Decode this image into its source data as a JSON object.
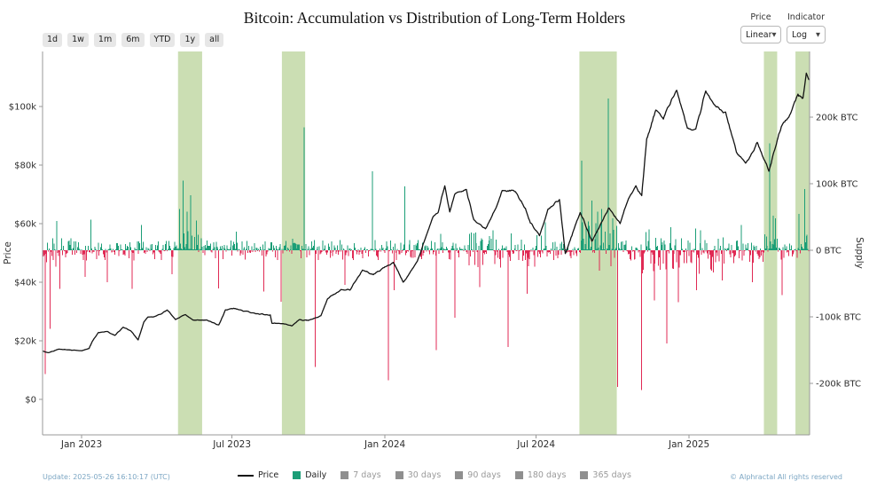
{
  "header": {
    "title": "Bitcoin: Accumulation vs Distribution of Long-Term Holders",
    "range_buttons": [
      "1d",
      "1w",
      "1m",
      "6m",
      "YTD",
      "1y",
      "all"
    ],
    "price_control": {
      "label": "Price",
      "value": "Linear"
    },
    "indicator_control": {
      "label": "Indicator",
      "value": "Log"
    }
  },
  "footer": {
    "update_text": "Update: 2025-05-26 16:10:17 (UTC)",
    "copyright": "© Alphractal All rights reserved",
    "legend": [
      {
        "label": "Price",
        "swatch": "line",
        "color": "#131313",
        "active": true
      },
      {
        "label": "Daily",
        "swatch": "square",
        "color": "#1b9e77",
        "active": true
      },
      {
        "label": "7 days",
        "swatch": "square",
        "color": "#8f8f8f",
        "active": false
      },
      {
        "label": "30 days",
        "swatch": "square",
        "color": "#8f8f8f",
        "active": false
      },
      {
        "label": "90 days",
        "swatch": "square",
        "color": "#8f8f8f",
        "active": false
      },
      {
        "label": "180 days",
        "swatch": "square",
        "color": "#8f8f8f",
        "active": false
      },
      {
        "label": "365 days",
        "swatch": "square",
        "color": "#8f8f8f",
        "active": false
      }
    ]
  },
  "chart_data": {
    "type": "mixed",
    "title": "Bitcoin: Accumulation vs Distribution of Long-Term Holders",
    "grid": false,
    "x_axis": {
      "start": "2022-11-15",
      "end": "2025-05-26",
      "tick_dates": [
        "2023-01-01",
        "2023-07-01",
        "2024-01-01",
        "2024-07-01",
        "2025-01-01"
      ],
      "tick_labels": [
        "Jan 2023",
        "Jul 2023",
        "Jan 2024",
        "Jul 2024",
        "Jan 2025"
      ]
    },
    "left_axis": {
      "label": "Price",
      "unit": "USD",
      "tick_values_usd_k": [
        100,
        80,
        60,
        40,
        20,
        0
      ],
      "tick_labels": [
        "$100k",
        "$80k",
        "$60k",
        "$40k",
        "$20k",
        "$0"
      ]
    },
    "right_axis": {
      "label": "Supply",
      "unit": "BTC",
      "tick_values_k_btc": [
        200,
        100,
        0,
        -100,
        -200
      ],
      "tick_labels": [
        "200k BTC",
        "100k BTC",
        "0 BTC",
        "-100k BTC",
        "-200k BTC"
      ]
    },
    "price_line": {
      "name": "Price",
      "color": "#131313",
      "points_usd": [
        [
          "2022-11-15",
          16500
        ],
        [
          "2022-11-22",
          15900
        ],
        [
          "2022-12-05",
          17200
        ],
        [
          "2022-12-20",
          16800
        ],
        [
          "2023-01-01",
          16600
        ],
        [
          "2023-01-10",
          17400
        ],
        [
          "2023-01-14",
          19900
        ],
        [
          "2023-01-21",
          22800
        ],
        [
          "2023-02-01",
          23100
        ],
        [
          "2023-02-10",
          21900
        ],
        [
          "2023-02-20",
          24600
        ],
        [
          "2023-03-01",
          23500
        ],
        [
          "2023-03-10",
          20300
        ],
        [
          "2023-03-17",
          26500
        ],
        [
          "2023-03-22",
          28100
        ],
        [
          "2023-04-01",
          28400
        ],
        [
          "2023-04-14",
          30500
        ],
        [
          "2023-04-24",
          27300
        ],
        [
          "2023-05-06",
          29000
        ],
        [
          "2023-05-15",
          27100
        ],
        [
          "2023-06-01",
          27100
        ],
        [
          "2023-06-15",
          25300
        ],
        [
          "2023-06-23",
          30500
        ],
        [
          "2023-07-03",
          31100
        ],
        [
          "2023-07-14",
          30300
        ],
        [
          "2023-07-30",
          29300
        ],
        [
          "2023-08-16",
          28700
        ],
        [
          "2023-08-18",
          26000
        ],
        [
          "2023-09-01",
          25900
        ],
        [
          "2023-09-11",
          25100
        ],
        [
          "2023-09-20",
          27200
        ],
        [
          "2023-10-01",
          27000
        ],
        [
          "2023-10-16",
          28500
        ],
        [
          "2023-10-24",
          34500
        ],
        [
          "2023-11-09",
          37300
        ],
        [
          "2023-11-20",
          37400
        ],
        [
          "2023-12-05",
          44100
        ],
        [
          "2023-12-18",
          42600
        ],
        [
          "2024-01-02",
          45400
        ],
        [
          "2024-01-11",
          46900
        ],
        [
          "2024-01-23",
          39900
        ],
        [
          "2024-02-09",
          47100
        ],
        [
          "2024-02-28",
          62500
        ],
        [
          "2024-03-05",
          63800
        ],
        [
          "2024-03-13",
          73100
        ],
        [
          "2024-03-19",
          63800
        ],
        [
          "2024-03-25",
          69900
        ],
        [
          "2024-04-08",
          71600
        ],
        [
          "2024-04-17",
          61300
        ],
        [
          "2024-05-01",
          58300
        ],
        [
          "2024-05-15",
          66200
        ],
        [
          "2024-05-21",
          71400
        ],
        [
          "2024-06-06",
          71100
        ],
        [
          "2024-06-18",
          65100
        ],
        [
          "2024-06-24",
          60300
        ],
        [
          "2024-07-05",
          55900
        ],
        [
          "2024-07-15",
          64700
        ],
        [
          "2024-07-29",
          68200
        ],
        [
          "2024-08-05",
          49800
        ],
        [
          "2024-08-23",
          64100
        ],
        [
          "2024-09-06",
          53900
        ],
        [
          "2024-09-26",
          65200
        ],
        [
          "2024-10-10",
          60300
        ],
        [
          "2024-10-20",
          68400
        ],
        [
          "2024-10-29",
          72700
        ],
        [
          "2024-11-05",
          69400
        ],
        [
          "2024-11-11",
          88700
        ],
        [
          "2024-11-22",
          98900
        ],
        [
          "2024-12-01",
          95900
        ],
        [
          "2024-12-17",
          106100
        ],
        [
          "2024-12-30",
          92600
        ],
        [
          "2025-01-09",
          92500
        ],
        [
          "2025-01-21",
          104800
        ],
        [
          "2025-02-01",
          100600
        ],
        [
          "2025-02-14",
          97500
        ],
        [
          "2025-02-27",
          84700
        ],
        [
          "2025-03-10",
          80700
        ],
        [
          "2025-03-24",
          87500
        ],
        [
          "2025-04-07",
          78200
        ],
        [
          "2025-04-22",
          93400
        ],
        [
          "2025-05-01",
          96500
        ],
        [
          "2025-05-12",
          104100
        ],
        [
          "2025-05-18",
          103100
        ],
        [
          "2025-05-22",
          110700
        ],
        [
          "2025-05-26",
          109400
        ]
      ]
    },
    "daily_flow_bars": {
      "name": "Daily",
      "unit": "k BTC",
      "accumulation_color": "#1b9e77",
      "distribution_color": "#e02a54",
      "notable_accumulation_k_btc": [
        [
          "2022-12-02",
          44
        ],
        [
          "2023-01-12",
          46
        ],
        [
          "2023-03-14",
          38
        ],
        [
          "2023-04-29",
          62
        ],
        [
          "2023-05-03",
          105
        ],
        [
          "2023-05-08",
          58
        ],
        [
          "2023-05-12",
          83
        ],
        [
          "2023-05-19",
          45
        ],
        [
          "2023-07-06",
          28
        ],
        [
          "2023-09-26",
          185
        ],
        [
          "2023-12-17",
          119
        ],
        [
          "2024-01-25",
          96
        ],
        [
          "2024-03-08",
          25
        ],
        [
          "2024-05-10",
          30
        ],
        [
          "2024-07-12",
          42
        ],
        [
          "2024-08-25",
          135
        ],
        [
          "2024-09-06",
          75
        ],
        [
          "2024-09-13",
          58
        ],
        [
          "2024-09-18",
          62
        ],
        [
          "2024-09-26",
          228
        ],
        [
          "2024-10-01",
          48
        ],
        [
          "2024-12-10",
          35
        ],
        [
          "2025-01-15",
          30
        ],
        [
          "2025-03-05",
          38
        ],
        [
          "2025-04-08",
          161
        ],
        [
          "2025-04-12",
          52
        ],
        [
          "2025-04-15",
          48
        ],
        [
          "2025-05-13",
          55
        ],
        [
          "2025-05-20",
          92
        ]
      ],
      "notable_distribution_k_btc": [
        [
          "2022-11-18",
          -186
        ],
        [
          "2022-11-24",
          -118
        ],
        [
          "2022-12-06",
          -58
        ],
        [
          "2023-01-05",
          -40
        ],
        [
          "2023-02-01",
          -48
        ],
        [
          "2023-03-03",
          -58
        ],
        [
          "2023-04-20",
          -36
        ],
        [
          "2023-06-15",
          -57
        ],
        [
          "2023-08-08",
          -62
        ],
        [
          "2023-08-29",
          -77
        ],
        [
          "2023-10-09",
          -175
        ],
        [
          "2023-11-14",
          -52
        ],
        [
          "2024-01-05",
          -195
        ],
        [
          "2024-01-12",
          -60
        ],
        [
          "2024-03-03",
          -150
        ],
        [
          "2024-03-25",
          -101
        ],
        [
          "2024-04-24",
          -55
        ],
        [
          "2024-05-28",
          -145
        ],
        [
          "2024-06-20",
          -65
        ],
        [
          "2024-10-07",
          -205
        ],
        [
          "2024-11-05",
          -210
        ],
        [
          "2024-11-20",
          -75
        ],
        [
          "2024-12-05",
          -140
        ],
        [
          "2024-12-19",
          -78
        ],
        [
          "2025-01-10",
          -60
        ],
        [
          "2025-02-10",
          -45
        ],
        [
          "2025-03-18",
          -48
        ],
        [
          "2025-04-23",
          -67
        ]
      ],
      "baseline_noise": {
        "seed": 11,
        "default_accumulation_probability": 0.55,
        "default_amplitude_k": 14,
        "periods": [
          {
            "from": "2022-11-15",
            "to": "2022-12-20",
            "accumulation_probability": 0.42,
            "amplitude_k": 24
          },
          {
            "from": "2023-04-27",
            "to": "2023-05-26",
            "accumulation_probability": 0.85,
            "amplitude_k": 30
          },
          {
            "from": "2023-08-30",
            "to": "2023-09-27",
            "accumulation_probability": 0.62,
            "amplitude_k": 18
          },
          {
            "from": "2024-04-10",
            "to": "2024-07-10",
            "accumulation_probability": 0.42,
            "amplitude_k": 26
          },
          {
            "from": "2024-08-22",
            "to": "2024-10-06",
            "accumulation_probability": 0.85,
            "amplitude_k": 42
          },
          {
            "from": "2024-11-01",
            "to": "2025-01-31",
            "accumulation_probability": 0.3,
            "amplitude_k": 34
          },
          {
            "from": "2025-02-01",
            "to": "2025-03-31",
            "accumulation_probability": 0.45,
            "amplitude_k": 20
          },
          {
            "from": "2025-04-02",
            "to": "2025-04-17",
            "accumulation_probability": 0.85,
            "amplitude_k": 30
          },
          {
            "from": "2025-05-09",
            "to": "2025-05-26",
            "accumulation_probability": 0.8,
            "amplitude_k": 30
          }
        ]
      }
    },
    "highlight_bands": {
      "color": "#cbdeb3",
      "date_ranges": [
        [
          "2023-04-27",
          "2023-05-26"
        ],
        [
          "2023-08-30",
          "2023-09-27"
        ],
        [
          "2024-08-22",
          "2024-10-06"
        ],
        [
          "2025-04-01",
          "2025-04-17"
        ],
        [
          "2025-05-09",
          "2025-05-26"
        ]
      ]
    }
  }
}
